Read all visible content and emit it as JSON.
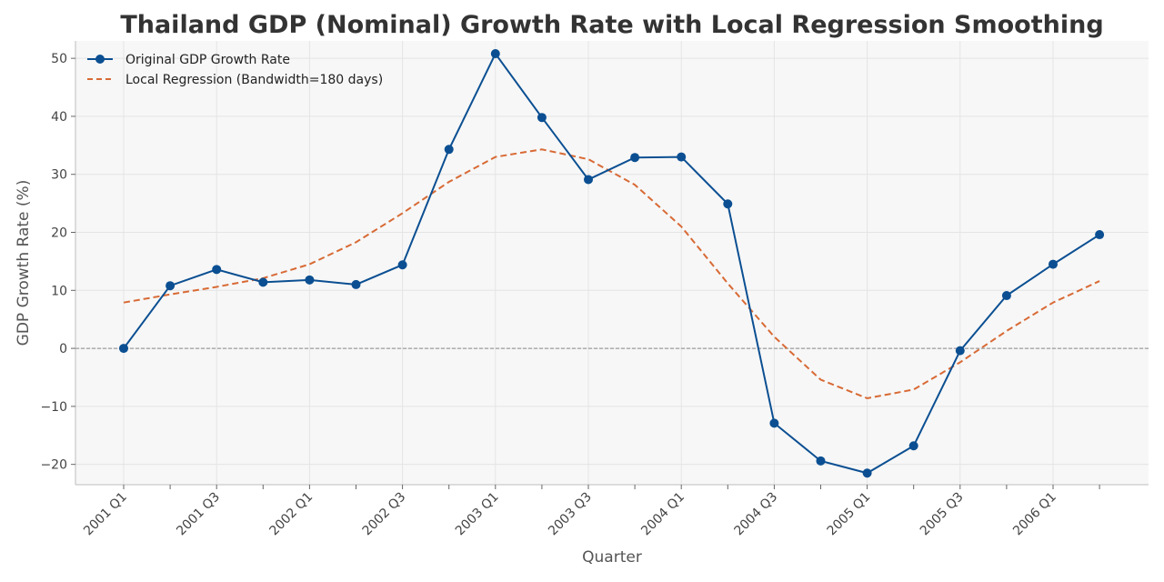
{
  "chart_data": {
    "type": "line",
    "title": "Thailand GDP (Nominal) Growth Rate with Local Regression Smoothing",
    "xlabel": "Quarter",
    "ylabel": "GDP Growth Rate (%)",
    "ylim": [
      -23.5,
      53
    ],
    "yticks": [
      -20,
      -10,
      0,
      10,
      20,
      30,
      40,
      50
    ],
    "ytick_labels": [
      "−20",
      "−10",
      "0",
      "10",
      "20",
      "30",
      "40",
      "50"
    ],
    "categories": [
      "2001 Q1",
      "2001 Q2",
      "2001 Q3",
      "2001 Q4",
      "2002 Q1",
      "2002 Q2",
      "2002 Q3",
      "2002 Q4",
      "2003 Q1",
      "2003 Q2",
      "2003 Q3",
      "2003 Q4",
      "2004 Q1",
      "2004 Q2",
      "2004 Q3",
      "2004 Q4",
      "2005 Q1",
      "2005 Q2",
      "2005 Q3",
      "2005 Q4",
      "2006 Q1",
      "2006 Q2"
    ],
    "tick_labels": [
      "2001 Q1",
      "",
      "2001 Q3",
      "",
      "2002 Q1",
      "",
      "2002 Q3",
      "",
      "2003 Q1",
      "",
      "2003 Q3",
      "",
      "2004 Q1",
      "",
      "2004 Q3",
      "",
      "2005 Q1",
      "",
      "2005 Q3",
      "",
      "2006 Q1",
      ""
    ],
    "grid": true,
    "legend_position": "top-left",
    "zero_line": true,
    "series": [
      {
        "name": "Original GDP Growth Rate",
        "style": "solid-marker",
        "color": "#0b4f92",
        "values": [
          0.0,
          10.8,
          13.6,
          11.4,
          11.8,
          11.0,
          14.4,
          34.3,
          50.8,
          39.8,
          29.1,
          32.9,
          33.0,
          24.9,
          -12.9,
          -19.4,
          -21.5,
          -16.8,
          -0.4,
          9.1,
          14.5,
          19.6
        ]
      },
      {
        "name": "Local Regression (Bandwidth=180 days)",
        "style": "dashed",
        "color": "#d86a35",
        "values": [
          7.9,
          9.3,
          10.6,
          12.1,
          14.5,
          18.3,
          23.3,
          28.7,
          33.0,
          34.3,
          32.6,
          28.2,
          21.0,
          11.2,
          2.0,
          -5.4,
          -8.6,
          -7.1,
          -2.4,
          3.0,
          7.9,
          11.6
        ]
      }
    ]
  },
  "colors": {
    "plot_background": "#f7f7f7",
    "grid": "#e4e4e4",
    "spine": "#bdbdbd",
    "zero_line": "#888888"
  }
}
